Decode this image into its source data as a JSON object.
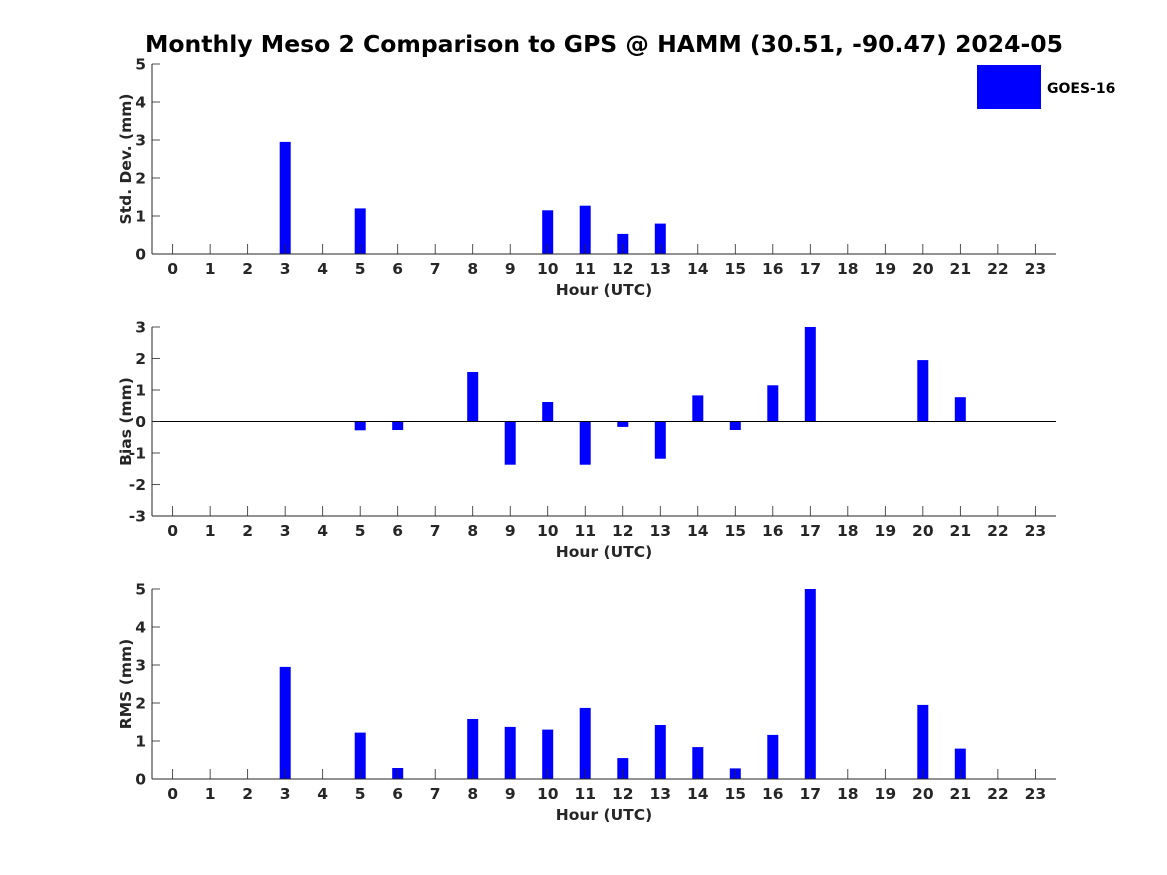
{
  "title": "Monthly Meso 2 Comparison to GPS @ HAMM (30.51, -90.47) 2024-05",
  "legend": {
    "label": "GOES-16",
    "placement": "top-right",
    "color": "#0000ff"
  },
  "chart_data": [
    {
      "type": "bar",
      "xlabel": "Hour (UTC)",
      "ylabel": "Std. Dev. (mm)",
      "x": [
        0,
        1,
        2,
        3,
        4,
        5,
        6,
        7,
        8,
        9,
        10,
        11,
        12,
        13,
        14,
        15,
        16,
        17,
        18,
        19,
        20,
        21,
        22,
        23
      ],
      "xticks": [
        "0",
        "1",
        "2",
        "3",
        "4",
        "5",
        "6",
        "7",
        "8",
        "9",
        "10",
        "11",
        "12",
        "13",
        "14",
        "15",
        "16",
        "17",
        "18",
        "19",
        "20",
        "21",
        "22",
        "23"
      ],
      "ylim": [
        0,
        5
      ],
      "yticks": [
        "0",
        "1",
        "2",
        "3",
        "4",
        "5"
      ],
      "series": [
        {
          "name": "GOES-16",
          "color": "#0000ff",
          "values": [
            0,
            0,
            0,
            2.95,
            0,
            1.2,
            0,
            0,
            0,
            0,
            1.15,
            1.27,
            0.53,
            0.8,
            0,
            0,
            0,
            0,
            0,
            0,
            0,
            0,
            0,
            0
          ]
        }
      ],
      "grid": false
    },
    {
      "type": "bar",
      "xlabel": "Hour (UTC)",
      "ylabel": "Bias (mm)",
      "x": [
        0,
        1,
        2,
        3,
        4,
        5,
        6,
        7,
        8,
        9,
        10,
        11,
        12,
        13,
        14,
        15,
        16,
        17,
        18,
        19,
        20,
        21,
        22,
        23
      ],
      "xticks": [
        "0",
        "1",
        "2",
        "3",
        "4",
        "5",
        "6",
        "7",
        "8",
        "9",
        "10",
        "11",
        "12",
        "13",
        "14",
        "15",
        "16",
        "17",
        "18",
        "19",
        "20",
        "21",
        "22",
        "23"
      ],
      "ylim": [
        -3,
        3
      ],
      "yticks": [
        "-3",
        "-2",
        "-1",
        "0",
        "1",
        "2",
        "3"
      ],
      "series": [
        {
          "name": "GOES-16",
          "color": "#0000ff",
          "values": [
            0,
            0,
            0,
            0,
            0,
            -0.28,
            -0.27,
            0,
            1.57,
            -1.37,
            0.62,
            -1.37,
            -0.17,
            -1.18,
            0.83,
            -0.27,
            1.15,
            3.0,
            0,
            0,
            1.95,
            0.77,
            0,
            0
          ]
        }
      ],
      "grid": false
    },
    {
      "type": "bar",
      "xlabel": "Hour (UTC)",
      "ylabel": "RMS (mm)",
      "x": [
        0,
        1,
        2,
        3,
        4,
        5,
        6,
        7,
        8,
        9,
        10,
        11,
        12,
        13,
        14,
        15,
        16,
        17,
        18,
        19,
        20,
        21,
        22,
        23
      ],
      "xticks": [
        "0",
        "1",
        "2",
        "3",
        "4",
        "5",
        "6",
        "7",
        "8",
        "9",
        "10",
        "11",
        "12",
        "13",
        "14",
        "15",
        "16",
        "17",
        "18",
        "19",
        "20",
        "21",
        "22",
        "23"
      ],
      "ylim": [
        0,
        5
      ],
      "yticks": [
        "0",
        "1",
        "2",
        "3",
        "4",
        "5"
      ],
      "series": [
        {
          "name": "GOES-16",
          "color": "#0000ff",
          "values": [
            0,
            0,
            0,
            2.95,
            0,
            1.22,
            0.29,
            0,
            1.58,
            1.37,
            1.3,
            1.87,
            0.55,
            1.42,
            0.84,
            0.28,
            1.16,
            5.0,
            0,
            0,
            1.95,
            0.8,
            0,
            0
          ]
        }
      ],
      "grid": false
    }
  ]
}
